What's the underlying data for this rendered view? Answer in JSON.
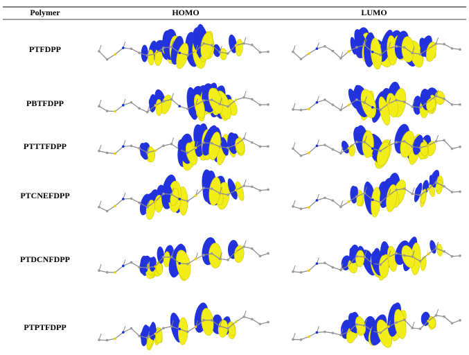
{
  "table": {
    "header": [
      "Polymer",
      "HOMO",
      "LUMO"
    ],
    "rows": [
      [
        "PTFDPP"
      ],
      [
        "PBTFDPP"
      ],
      [
        "PTTTFDPP"
      ],
      [
        "PTCNEFDPP"
      ],
      [
        "PTDCNFDPP"
      ],
      [
        "PTPTFDPP"
      ]
    ]
  }
}
